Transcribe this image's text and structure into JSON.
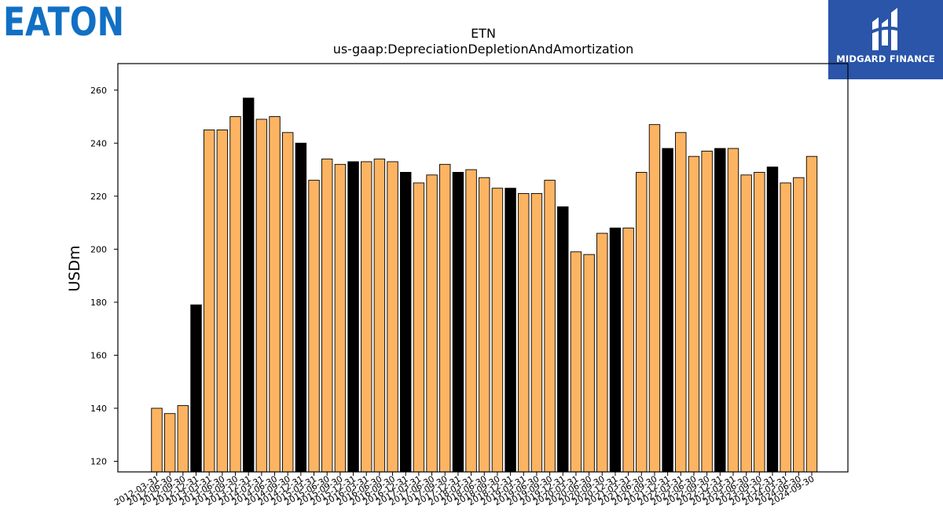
{
  "logos": {
    "eaton": "EATON",
    "midgard": "MIDGARD FINANCE"
  },
  "colors": {
    "bar_default": "#FDB462",
    "bar_highlight": "#000000",
    "eaton_blue": "#1170c4",
    "midgard_blue": "#2a55a8"
  },
  "chart_data": {
    "type": "bar",
    "title": "ETN",
    "subtitle": "us-gaap:DepreciationDepletionAndAmortization",
    "xlabel": "",
    "ylabel": "USDm",
    "ylim": [
      116,
      270
    ],
    "yticks": [
      120,
      140,
      160,
      180,
      200,
      220,
      240,
      260
    ],
    "grid": false,
    "categories": [
      "2012-03-31",
      "2012-06-30",
      "2012-09-30",
      "2012-12-31",
      "2013-03-31",
      "2013-06-30",
      "2013-09-30",
      "2013-12-31",
      "2014-03-31",
      "2014-06-30",
      "2014-09-30",
      "2014-12-31",
      "2015-03-31",
      "2015-06-30",
      "2015-09-30",
      "2015-12-31",
      "2016-03-31",
      "2016-06-30",
      "2016-09-30",
      "2016-12-31",
      "2017-03-31",
      "2017-06-30",
      "2017-09-30",
      "2017-12-31",
      "2018-03-31",
      "2018-06-30",
      "2018-09-30",
      "2018-12-31",
      "2019-03-31",
      "2019-06-30",
      "2019-09-30",
      "2019-12-31",
      "2020-03-31",
      "2020-06-30",
      "2020-09-30",
      "2020-12-31",
      "2021-03-31",
      "2021-06-30",
      "2021-09-30",
      "2021-12-31",
      "2022-03-31",
      "2022-06-30",
      "2022-09-30",
      "2022-12-31",
      "2023-03-31",
      "2023-06-30",
      "2023-09-30",
      "2023-12-31",
      "2024-03-31",
      "2024-06-30",
      "2024-09-30"
    ],
    "values": [
      140,
      138,
      141,
      179,
      245,
      245,
      250,
      257,
      249,
      250,
      244,
      240,
      226,
      234,
      232,
      233,
      233,
      234,
      233,
      229,
      225,
      228,
      232,
      229,
      230,
      227,
      223,
      223,
      221,
      221,
      226,
      216,
      199,
      198,
      206,
      208,
      208,
      229,
      247,
      238,
      244,
      235,
      237,
      238,
      238,
      228,
      229,
      231,
      225,
      227,
      235
    ],
    "highlight_quarter": "12-31"
  }
}
